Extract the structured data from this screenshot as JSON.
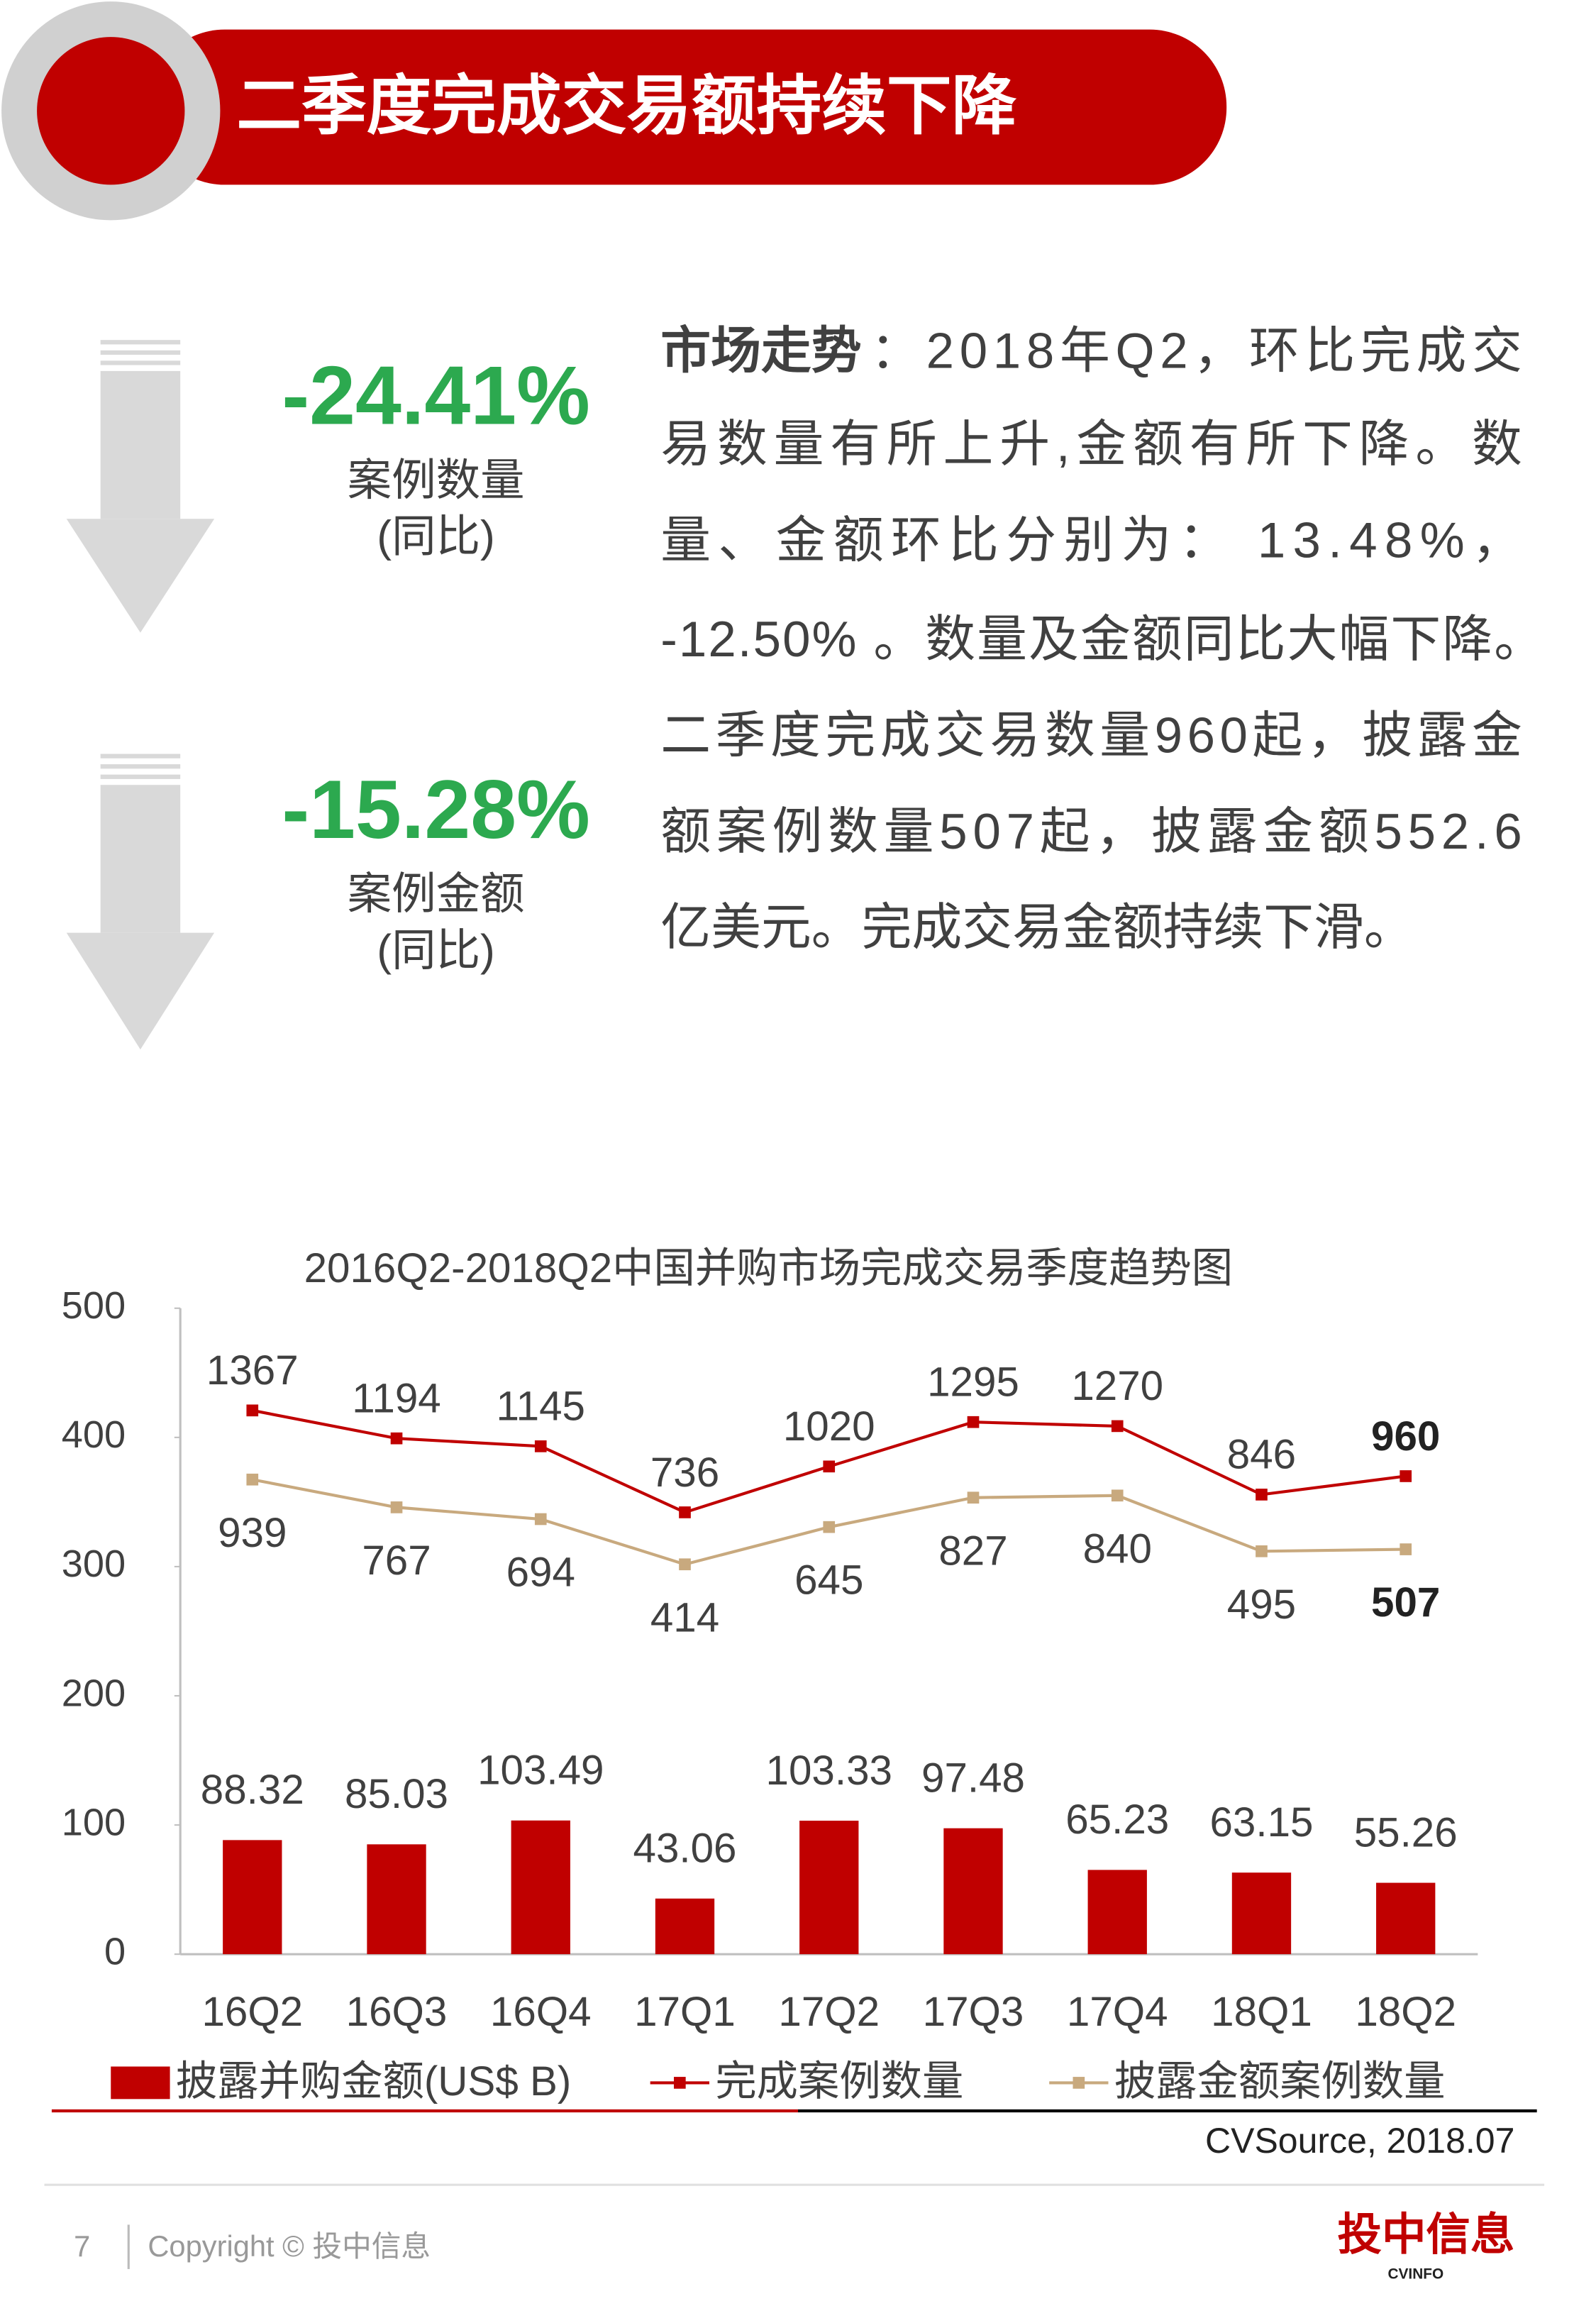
{
  "header": {
    "title": "二季度完成交易额持续下降"
  },
  "stats": [
    {
      "value": "-24.41%",
      "label": "案例数量",
      "note": "(同比)"
    },
    {
      "value": "-15.28%",
      "label": "案例金额",
      "note": "(同比)"
    }
  ],
  "market": {
    "label": "市场走势",
    "lines": [
      "：2018年Q2，环比完成交",
      "易数量有所上升,金额有所下降。数",
      "量、金额环比分别为： 13.48%，",
      "-12.50% 。数量及金额同比大幅下降。",
      "二季度完成交易数量960起，披露金",
      "额案例数量507起，披露金额552.6",
      "亿美元。完成交易金额持续下滑。"
    ]
  },
  "chart_data": {
    "type": "bar",
    "title": "2016Q2-2018Q2中国并购市场完成交易季度趋势图",
    "categories": [
      "16Q2",
      "16Q3",
      "16Q4",
      "17Q1",
      "17Q2",
      "17Q3",
      "17Q4",
      "18Q1",
      "18Q2"
    ],
    "ylim": [
      0,
      500
    ],
    "yticks": [
      0,
      100,
      200,
      300,
      400,
      500
    ],
    "y2lim": [
      -2000,
      2000
    ],
    "grid": false,
    "series": [
      {
        "name": "披露并购金额(US$ B)",
        "type": "bar",
        "color": "#c00000",
        "values": [
          88.32,
          85.03,
          103.49,
          43.06,
          103.33,
          97.48,
          65.23,
          63.15,
          55.26
        ]
      },
      {
        "name": "完成案例数量",
        "type": "line",
        "axis": "y2",
        "color": "#c00000",
        "values": [
          1367,
          1194,
          1145,
          736,
          1020,
          1295,
          1270,
          846,
          960
        ]
      },
      {
        "name": "披露金额案例数量",
        "type": "line",
        "axis": "y2",
        "color": "#c8a97e",
        "values": [
          939,
          767,
          694,
          414,
          645,
          827,
          840,
          495,
          507
        ]
      }
    ],
    "source": "CVSource, 2018.07"
  },
  "footer": {
    "page": "7",
    "copyright": "Copyright © 投中信息",
    "logo": "投中信息",
    "logo_sub": "CVINFO"
  }
}
